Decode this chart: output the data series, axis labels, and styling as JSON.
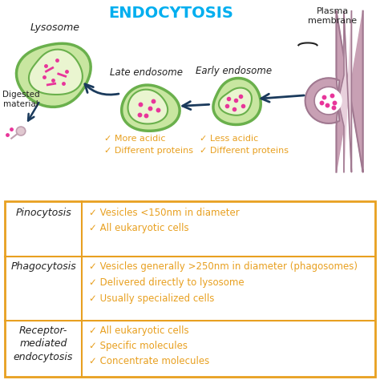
{
  "title": "ENDOCYTOSIS",
  "title_color": "#00AEEF",
  "title_fontsize": 14,
  "bg_color": "#ffffff",
  "table_border_color": "#E8A020",
  "table_rows": [
    {
      "label": "Pinocytosis",
      "items": [
        "Vesicles <150nm in diameter",
        "All eukaryotic cells"
      ]
    },
    {
      "label": "Phagocytosis",
      "items": [
        "Vesicles generally >250nm in diameter (phagosomes)",
        "Delivered directly to lysosome",
        "Usually specialized cells"
      ]
    },
    {
      "label": "Receptor-\nmediated\nendocytosis",
      "items": [
        "All eukaryotic cells",
        "Specific molecules",
        "Concentrate molecules"
      ]
    }
  ],
  "check_color": "#E8A020",
  "text_color": "#222222",
  "arrow_color": "#1a3a5c",
  "green_fill": "#c8e6a0",
  "green_border": "#6ab04c",
  "inner_fill": "#eaf5d0",
  "pink_dot": "#e8359a",
  "plasma_fill": "#c8a0b4",
  "plasma_border": "#a07890",
  "plasma_inner": "#e8d0dc"
}
